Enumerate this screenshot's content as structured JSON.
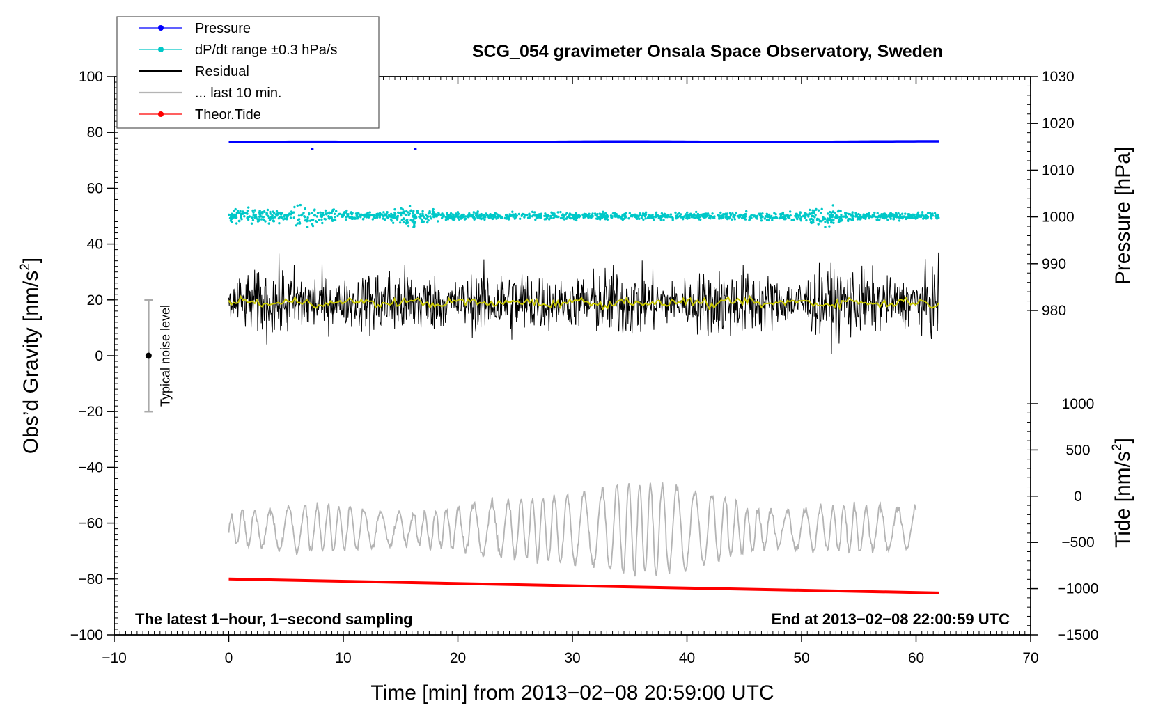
{
  "chart_data": {
    "type": "line",
    "title": "SCG_054 gravimeter Onsala Space Observatory, Sweden",
    "xlabel": "Time [min] from 2013−02−08 20:59:00 UTC",
    "ylabel_left": "Obs’d Gravity [nm/s",
    "ylabel_left_sup": "2",
    "ylabel_left_end": "]",
    "ylabel_right_top": "Pressure [hPa]",
    "ylabel_right_bottom": "Tide [nm/s",
    "ylabel_right_bottom_sup": "2",
    "ylabel_right_bottom_end": "]",
    "xlim": [
      -10,
      70
    ],
    "ylim_left": [
      -100,
      100
    ],
    "ylim_pressure": [
      980,
      1030
    ],
    "ylim_tide": [
      -1500,
      1000
    ],
    "x_ticks": [
      "−10",
      "0",
      "10",
      "20",
      "30",
      "40",
      "50",
      "60",
      "70"
    ],
    "x_tick_values": [
      -10,
      0,
      10,
      20,
      30,
      40,
      50,
      60,
      70
    ],
    "y_left_ticks": [
      "100",
      "80",
      "60",
      "40",
      "20",
      "0",
      "−20",
      "−40",
      "−60",
      "−80",
      "−100"
    ],
    "y_left_tick_values": [
      100,
      80,
      60,
      40,
      20,
      0,
      -20,
      -40,
      -60,
      -80,
      -100
    ],
    "y_pressure_ticks": [
      "1030",
      "1020",
      "1010",
      "1000",
      "990",
      "980"
    ],
    "y_pressure_tick_values": [
      1030,
      1020,
      1010,
      1000,
      990,
      980
    ],
    "y_tide_ticks": [
      "1000",
      "500",
      "0",
      "−500",
      "−1000",
      "−1500"
    ],
    "y_tide_tick_values": [
      1000,
      500,
      0,
      -500,
      -1000,
      -1500
    ],
    "annotation_left": "The latest 1−hour, 1−second sampling",
    "annotation_right": "End at 2013−02−08 22:00:59 UTC",
    "noise_label": "Typical noise level",
    "noise_bar": {
      "x": -7,
      "center": 0,
      "low": -20,
      "high": 20
    },
    "legend": [
      {
        "label": "Pressure",
        "color": "#0000ff",
        "marker": true
      },
      {
        "label": "dP/dt range ±0.3 hPa/s",
        "color": "#00c8c8",
        "marker": true
      },
      {
        "label": "Residual",
        "color": "#000000",
        "marker": false
      },
      {
        "label": "... last 10 min.",
        "color": "#b4b4b4",
        "marker": false
      },
      {
        "label": "Theor.Tide",
        "color": "#ff0000",
        "marker": true
      }
    ],
    "series": [
      {
        "name": "Pressure",
        "axis": "pressure",
        "color": "#0000ff",
        "x_start": 0,
        "x_end": 62,
        "start_value": 1016.0,
        "end_value": 1016.1
      },
      {
        "name": "dP/dt range ±0.3 hPa/s",
        "axis": "left",
        "color": "#00c8c8",
        "x_start": 0,
        "x_end": 62,
        "center": 50,
        "spread": 3
      },
      {
        "name": "Residual",
        "axis": "left",
        "color": "#000000",
        "x_start": 0,
        "x_end": 62,
        "center": 19,
        "spread": 10
      },
      {
        "name": "Residual smoothed",
        "axis": "left",
        "color": "#c8c800",
        "x_start": 0,
        "x_end": 62,
        "center": 19,
        "spread": 1.5
      },
      {
        "name": "... last 10 min.",
        "axis": "left",
        "color": "#b4b4b4",
        "x_start": 0,
        "x_end": 60,
        "center": -62,
        "spread": 10
      },
      {
        "name": "Theor.Tide",
        "axis": "left",
        "color": "#ff0000",
        "x_start": 0,
        "x_end": 62,
        "start_value": -80,
        "end_value": -85
      }
    ]
  }
}
